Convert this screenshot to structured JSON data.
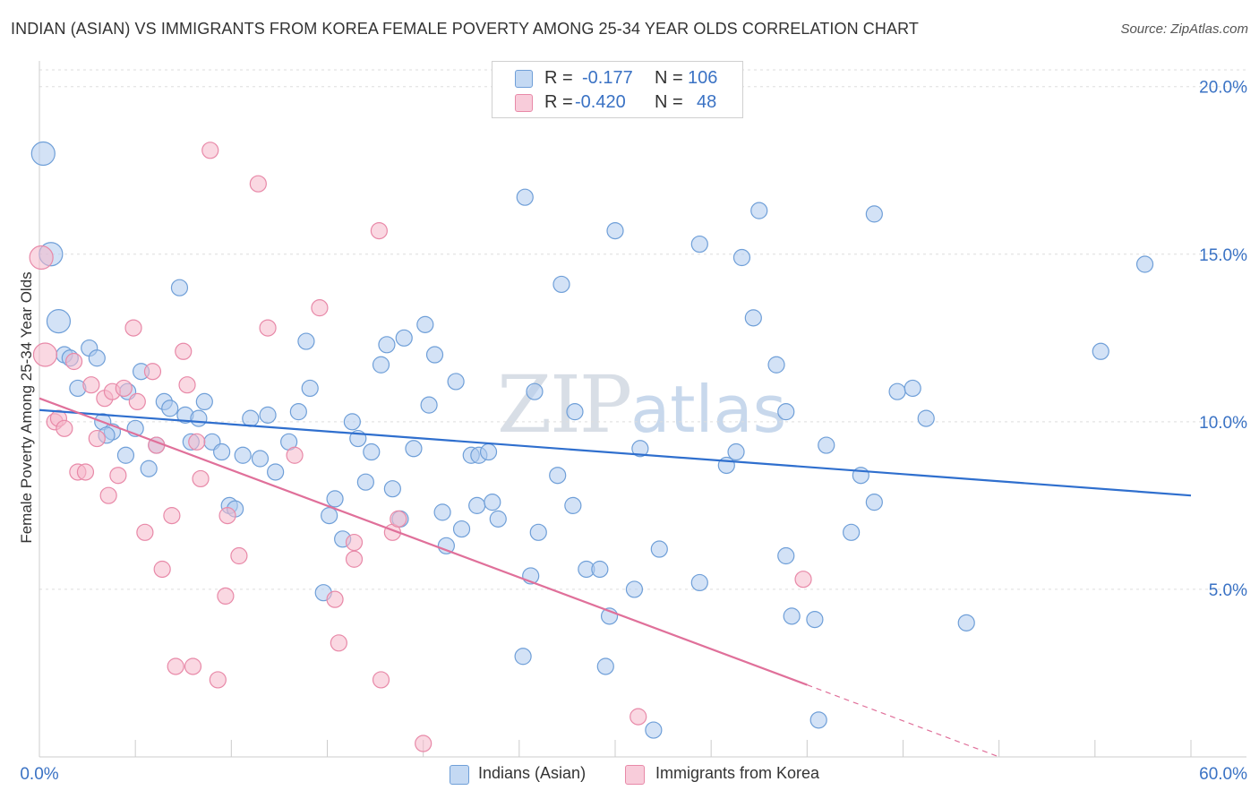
{
  "title": "INDIAN (ASIAN) VS IMMIGRANTS FROM KOREA FEMALE POVERTY AMONG 25-34 YEAR OLDS CORRELATION CHART",
  "source": "Source: ZipAtlas.com",
  "watermark": {
    "zip": "ZIP",
    "atlas": "atlas"
  },
  "colors": {
    "blue_fill": "#aecbef",
    "blue_stroke": "#6f9fd8",
    "blue_line": "#2f6fce",
    "pink_fill": "#f5b8cb",
    "pink_stroke": "#e889a8",
    "pink_line": "#e0709a",
    "axis_text": "#3a72c4"
  },
  "legend_top": [
    {
      "r_label": "R =",
      "r_value": "-0.177",
      "n_label": "N =",
      "n_value": "106"
    },
    {
      "r_label": "R =",
      "r_value": "-0.420",
      "n_label": "N =",
      "n_value": "48"
    }
  ],
  "chart_data": {
    "type": "scatter",
    "title": "INDIAN (ASIAN) VS IMMIGRANTS FROM KOREA FEMALE POVERTY AMONG 25-34 YEAR OLDS CORRELATION CHART",
    "xlabel": "",
    "ylabel": "Female Poverty Among 25-34 Year Olds",
    "xlim": [
      0,
      60
    ],
    "ylim": [
      0,
      20.5
    ],
    "x_tick_labels": [
      "0.0%",
      "60.0%"
    ],
    "y_ticks": [
      5,
      10,
      15,
      20
    ],
    "y_tick_labels": [
      "5.0%",
      "10.0%",
      "15.0%",
      "20.0%"
    ],
    "grid": "horizontal dashed",
    "legend_position": "bottom-center",
    "series": [
      {
        "name": "Indians (Asian)",
        "r": -0.177,
        "n": 106,
        "trend": {
          "x": [
            0,
            60
          ],
          "y": [
            10.35,
            7.8
          ]
        },
        "points": [
          [
            0.2,
            18.0
          ],
          [
            0.6,
            15.0
          ],
          [
            1.0,
            13.0
          ],
          [
            1.3,
            12.0
          ],
          [
            1.6,
            11.9
          ],
          [
            2.0,
            11.0
          ],
          [
            2.6,
            12.2
          ],
          [
            3.0,
            11.9
          ],
          [
            3.3,
            10.0
          ],
          [
            3.8,
            9.7
          ],
          [
            3.5,
            9.6
          ],
          [
            4.6,
            10.9
          ],
          [
            4.5,
            9.0
          ],
          [
            5.0,
            9.8
          ],
          [
            5.3,
            11.5
          ],
          [
            5.7,
            8.6
          ],
          [
            6.1,
            9.3
          ],
          [
            6.5,
            10.6
          ],
          [
            6.8,
            10.4
          ],
          [
            7.3,
            14.0
          ],
          [
            7.6,
            10.2
          ],
          [
            7.9,
            9.4
          ],
          [
            8.3,
            10.1
          ],
          [
            8.6,
            10.6
          ],
          [
            9.0,
            9.4
          ],
          [
            9.5,
            9.1
          ],
          [
            9.9,
            7.5
          ],
          [
            10.2,
            7.4
          ],
          [
            10.6,
            9.0
          ],
          [
            11.0,
            10.1
          ],
          [
            11.5,
            8.9
          ],
          [
            11.9,
            10.2
          ],
          [
            12.3,
            8.5
          ],
          [
            13.0,
            9.4
          ],
          [
            13.5,
            10.3
          ],
          [
            13.9,
            12.4
          ],
          [
            14.1,
            11.0
          ],
          [
            14.8,
            4.9
          ],
          [
            15.1,
            7.2
          ],
          [
            15.4,
            7.7
          ],
          [
            15.8,
            6.5
          ],
          [
            16.3,
            10.0
          ],
          [
            16.6,
            9.5
          ],
          [
            17.0,
            8.2
          ],
          [
            17.3,
            9.1
          ],
          [
            17.8,
            11.7
          ],
          [
            18.1,
            12.3
          ],
          [
            18.4,
            8.0
          ],
          [
            18.8,
            7.1
          ],
          [
            19.0,
            12.5
          ],
          [
            19.5,
            9.2
          ],
          [
            20.1,
            12.9
          ],
          [
            20.3,
            10.5
          ],
          [
            20.6,
            12.0
          ],
          [
            21.0,
            7.3
          ],
          [
            21.2,
            6.3
          ],
          [
            21.7,
            11.2
          ],
          [
            22.0,
            6.8
          ],
          [
            22.5,
            9.0
          ],
          [
            22.8,
            7.5
          ],
          [
            22.9,
            9.0
          ],
          [
            23.4,
            9.1
          ],
          [
            23.6,
            7.6
          ],
          [
            23.9,
            7.1
          ],
          [
            25.3,
            16.7
          ],
          [
            25.2,
            3.0
          ],
          [
            25.6,
            5.4
          ],
          [
            25.8,
            10.9
          ],
          [
            26.0,
            6.7
          ],
          [
            27.0,
            8.4
          ],
          [
            27.2,
            14.1
          ],
          [
            27.8,
            7.5
          ],
          [
            27.9,
            10.3
          ],
          [
            28.5,
            5.6
          ],
          [
            29.2,
            5.6
          ],
          [
            29.5,
            2.7
          ],
          [
            29.7,
            4.2
          ],
          [
            30.0,
            15.7
          ],
          [
            31.0,
            5.0
          ],
          [
            31.3,
            9.2
          ],
          [
            32.0,
            0.8
          ],
          [
            32.3,
            6.2
          ],
          [
            34.4,
            15.3
          ],
          [
            34.4,
            5.2
          ],
          [
            35.8,
            8.7
          ],
          [
            36.3,
            9.1
          ],
          [
            36.6,
            14.9
          ],
          [
            37.2,
            13.1
          ],
          [
            37.5,
            16.3
          ],
          [
            38.4,
            11.7
          ],
          [
            38.9,
            10.3
          ],
          [
            38.9,
            6.0
          ],
          [
            39.2,
            4.2
          ],
          [
            40.4,
            4.1
          ],
          [
            40.6,
            1.1
          ],
          [
            41.0,
            9.3
          ],
          [
            42.3,
            6.7
          ],
          [
            42.8,
            8.4
          ],
          [
            43.5,
            7.6
          ],
          [
            43.5,
            16.2
          ],
          [
            44.7,
            10.9
          ],
          [
            45.5,
            11.0
          ],
          [
            46.2,
            10.1
          ],
          [
            48.3,
            4.0
          ],
          [
            55.3,
            12.1
          ],
          [
            57.6,
            14.7
          ]
        ]
      },
      {
        "name": "Immigrants from Korea",
        "r": -0.42,
        "n": 48,
        "trend": {
          "x": [
            0,
            40.0
          ],
          "y": [
            10.7,
            2.15
          ]
        },
        "trend_extension": {
          "x": [
            40.0,
            50.0
          ],
          "y": [
            2.15,
            0.0
          ]
        },
        "points": [
          [
            0.1,
            14.9
          ],
          [
            0.3,
            12.0
          ],
          [
            0.8,
            10.0
          ],
          [
            1.0,
            10.1
          ],
          [
            1.3,
            9.8
          ],
          [
            1.8,
            11.8
          ],
          [
            2.0,
            8.5
          ],
          [
            2.4,
            8.5
          ],
          [
            2.7,
            11.1
          ],
          [
            3.0,
            9.5
          ],
          [
            3.4,
            10.7
          ],
          [
            3.6,
            7.8
          ],
          [
            3.8,
            10.9
          ],
          [
            4.1,
            8.4
          ],
          [
            4.4,
            11.0
          ],
          [
            4.9,
            12.8
          ],
          [
            5.1,
            10.6
          ],
          [
            5.5,
            6.7
          ],
          [
            5.9,
            11.5
          ],
          [
            6.1,
            9.3
          ],
          [
            6.4,
            5.6
          ],
          [
            6.9,
            7.2
          ],
          [
            7.1,
            2.7
          ],
          [
            7.5,
            12.1
          ],
          [
            7.7,
            11.1
          ],
          [
            8.0,
            2.7
          ],
          [
            8.2,
            9.4
          ],
          [
            8.4,
            8.3
          ],
          [
            8.9,
            18.1
          ],
          [
            9.3,
            2.3
          ],
          [
            9.7,
            4.8
          ],
          [
            9.8,
            7.2
          ],
          [
            10.4,
            6.0
          ],
          [
            11.4,
            17.1
          ],
          [
            11.9,
            12.8
          ],
          [
            13.3,
            9.0
          ],
          [
            14.6,
            13.4
          ],
          [
            15.4,
            4.7
          ],
          [
            15.6,
            3.4
          ],
          [
            16.4,
            6.4
          ],
          [
            16.4,
            5.9
          ],
          [
            17.7,
            15.7
          ],
          [
            17.8,
            2.3
          ],
          [
            18.4,
            6.7
          ],
          [
            18.7,
            7.1
          ],
          [
            20.0,
            0.4
          ],
          [
            31.2,
            1.2
          ],
          [
            39.8,
            5.3
          ]
        ]
      }
    ]
  },
  "legend_bottom": [
    {
      "label": "Indians (Asian)"
    },
    {
      "label": "Immigrants from Korea"
    }
  ]
}
